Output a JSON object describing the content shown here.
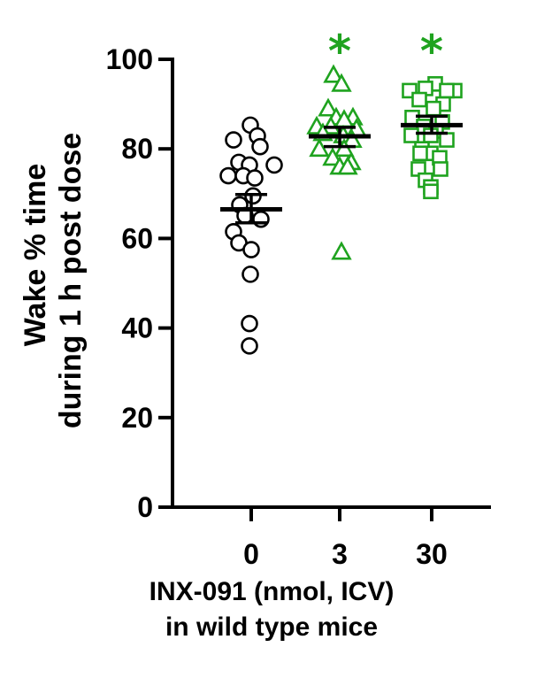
{
  "chart_data": {
    "type": "scatter",
    "ylabel_lines": [
      "Wake % time",
      "during 1 h post dose"
    ],
    "xlabel_lines": [
      "INX-091 (nmol, ICV)",
      "in wild type mice"
    ],
    "ylim": [
      0,
      100
    ],
    "yticks": [
      0,
      20,
      40,
      60,
      80,
      100
    ],
    "categories": [
      "0",
      "3",
      "30"
    ],
    "groups": [
      {
        "name": "0",
        "color": "#000000",
        "marker": "circle",
        "significance": "",
        "mean": 66.5,
        "sem_low": 63.5,
        "sem_high": 69.8,
        "points": [
          [
            -0.01,
            85.3
          ],
          [
            0.07,
            82.9
          ],
          [
            -0.2,
            82.0
          ],
          [
            0.1,
            80.5
          ],
          [
            -0.14,
            77.0
          ],
          [
            -0.02,
            76.4
          ],
          [
            0.26,
            76.4
          ],
          [
            -0.26,
            74.0
          ],
          [
            -0.09,
            74.0
          ],
          [
            0.04,
            73.5
          ],
          [
            0.02,
            69.5
          ],
          [
            -0.13,
            67.5
          ],
          [
            -0.07,
            65.1
          ],
          [
            0.11,
            64.3
          ],
          [
            -0.2,
            61.5
          ],
          [
            -0.14,
            59.0
          ],
          [
            0.0,
            57.5
          ],
          [
            -0.01,
            52.0
          ],
          [
            -0.02,
            41.0
          ],
          [
            -0.02,
            36.0
          ]
        ]
      },
      {
        "name": "3",
        "color": "#1fa31f",
        "marker": "triangle",
        "significance": "*",
        "mean": 82.8,
        "sem_low": 80.5,
        "sem_high": 84.8,
        "points": [
          [
            -0.07,
            96.5
          ],
          [
            0.02,
            94.5
          ],
          [
            -0.13,
            89.0
          ],
          [
            -0.04,
            87.0
          ],
          [
            0.15,
            87.0
          ],
          [
            0.05,
            86.5
          ],
          [
            -0.26,
            85.0
          ],
          [
            -0.1,
            85.0
          ],
          [
            0.19,
            84.5
          ],
          [
            -0.19,
            83.5
          ],
          [
            0.04,
            83.0
          ],
          [
            0.14,
            82.0
          ],
          [
            -0.23,
            80.0
          ],
          [
            0.05,
            80.0
          ],
          [
            -0.08,
            78.0
          ],
          [
            0.13,
            77.0
          ],
          [
            0.0,
            76.0
          ],
          [
            0.09,
            76.0
          ],
          [
            0.02,
            57.0
          ]
        ]
      },
      {
        "name": "30",
        "color": "#1fa31f",
        "marker": "square",
        "significance": "*",
        "mean": 85.3,
        "sem_low": 83.5,
        "sem_high": 87.3,
        "points": [
          [
            0.04,
            94.5
          ],
          [
            -0.07,
            93.5
          ],
          [
            0.26,
            93.0
          ],
          [
            -0.25,
            93.0
          ],
          [
            0.17,
            93.0
          ],
          [
            -0.14,
            91.0
          ],
          [
            0.13,
            90.0
          ],
          [
            0.02,
            89.0
          ],
          [
            -0.22,
            87.0
          ],
          [
            0.12,
            86.0
          ],
          [
            -0.09,
            85.0
          ],
          [
            0.05,
            84.0
          ],
          [
            -0.23,
            83.0
          ],
          [
            -0.01,
            83.0
          ],
          [
            0.17,
            82.0
          ],
          [
            -0.11,
            80.0
          ],
          [
            -0.01,
            79.0
          ],
          [
            -0.13,
            79.0
          ],
          [
            0.09,
            78.0
          ],
          [
            -0.15,
            75.5
          ],
          [
            0.1,
            75.5
          ],
          [
            -0.07,
            73.0
          ],
          [
            -0.01,
            71.5
          ],
          [
            -0.01,
            70.5
          ]
        ]
      }
    ]
  }
}
